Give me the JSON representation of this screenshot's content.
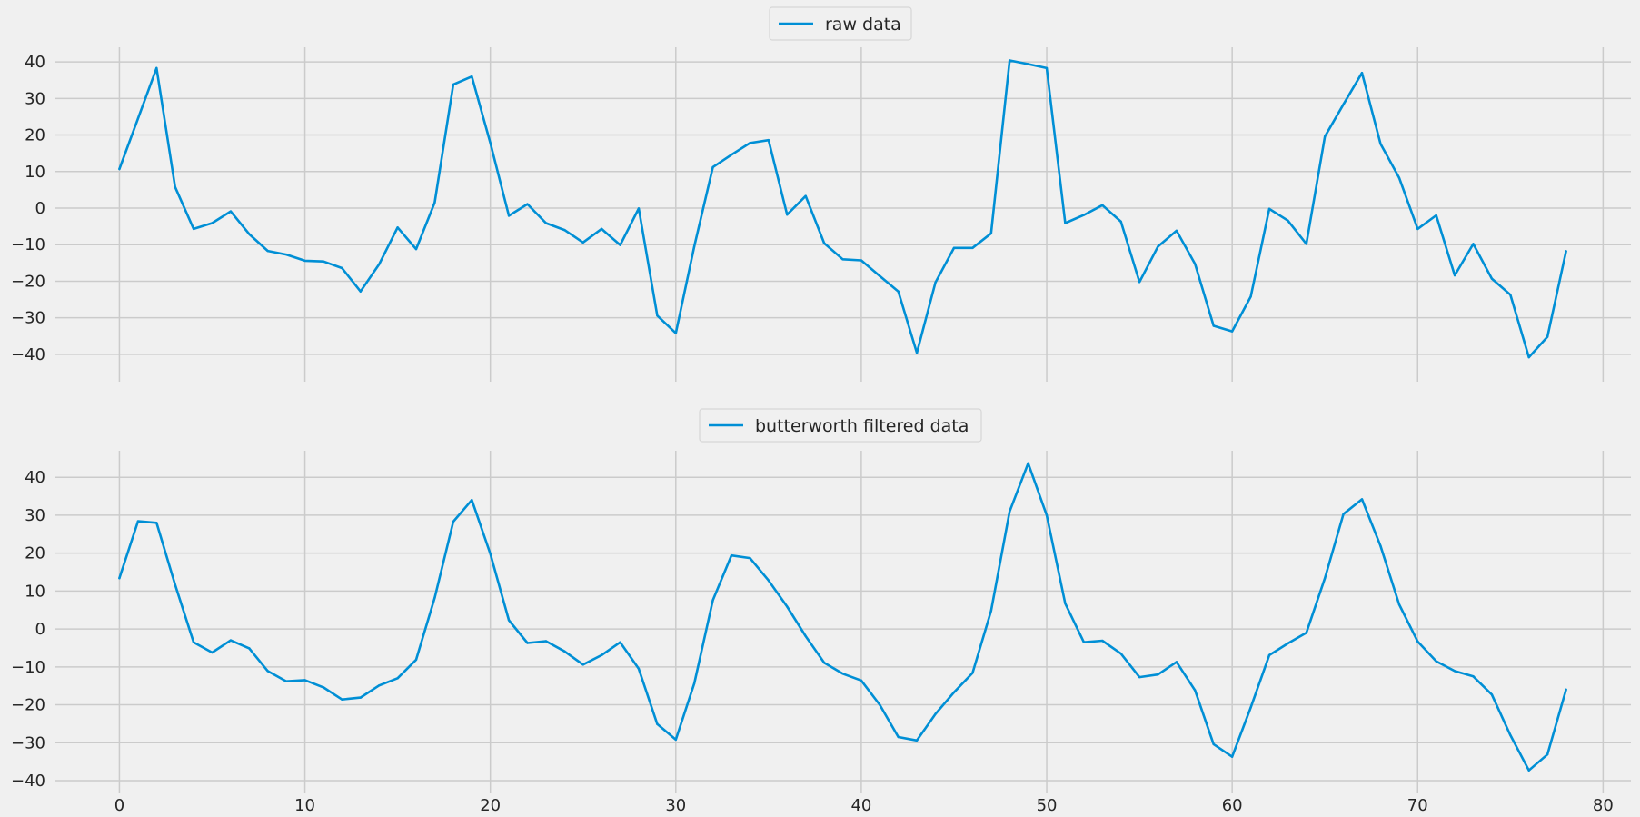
{
  "chart_data": [
    {
      "type": "line",
      "legend_loc": "upper center",
      "grid": true,
      "xlim": [
        -3.5,
        81.5
      ],
      "ylim": [
        -44,
        44
      ],
      "xticks": [
        0,
        10,
        20,
        30,
        40,
        50,
        60,
        70,
        80
      ],
      "yticks": [
        -40,
        -30,
        -20,
        -10,
        0,
        10,
        20,
        30,
        40
      ],
      "show_xticklabels": false,
      "x": [
        0,
        1,
        2,
        3,
        4,
        5,
        6,
        7,
        8,
        9,
        10,
        11,
        12,
        13,
        14,
        15,
        16,
        17,
        18,
        19,
        20,
        21,
        22,
        23,
        24,
        25,
        26,
        27,
        28,
        29,
        30,
        31,
        32,
        33,
        34,
        35,
        36,
        37,
        38,
        39,
        40,
        41,
        42,
        43,
        44,
        45,
        46,
        47,
        48,
        49,
        50,
        51,
        52,
        53,
        54,
        55,
        56,
        57,
        58,
        59,
        60,
        61,
        62,
        63,
        64,
        65,
        66,
        67,
        68,
        69,
        70,
        71,
        72,
        73,
        74,
        75,
        76,
        77,
        78
      ],
      "series": [
        {
          "name": "raw data",
          "color": "#008fd5",
          "values": [
            10.7,
            24.5,
            38.3,
            5.8,
            -5.7,
            -4.1,
            -0.9,
            -7.1,
            -11.7,
            -12.7,
            -14.4,
            -14.6,
            -16.4,
            -22.8,
            -15.4,
            -5.3,
            -11.2,
            1.5,
            33.8,
            36.0,
            17.8,
            -2.1,
            1.1,
            -4.1,
            -6.0,
            -9.4,
            -5.7,
            -10.1,
            -0.1,
            -29.4,
            -34.2,
            -10.4,
            11.2,
            14.6,
            17.8,
            18.6,
            -1.8,
            3.3,
            -9.6,
            -14.0,
            -14.3,
            -18.6,
            -22.8,
            -39.6,
            -20.3,
            -10.9,
            -10.9,
            -6.9,
            40.4,
            39.4,
            38.3,
            -4.1,
            -1.9,
            0.8,
            -3.7,
            -20.2,
            -10.5,
            -6.2,
            -15.3,
            -32.2,
            -33.7,
            -24.2,
            -0.2,
            -3.4,
            -9.8,
            19.6,
            28.4,
            37.0,
            17.6,
            8.3,
            -5.7,
            -2.0,
            -18.4,
            -9.8,
            -19.3,
            -23.7,
            -40.8,
            -35.2,
            -11.8
          ]
        }
      ]
    },
    {
      "type": "line",
      "legend_loc": "upper center",
      "grid": true,
      "xlim": [
        -3.5,
        81.5
      ],
      "ylim": [
        -40,
        47
      ],
      "xticks": [
        0,
        10,
        20,
        30,
        40,
        50,
        60,
        70,
        80
      ],
      "yticks": [
        -40,
        -30,
        -20,
        -10,
        0,
        10,
        20,
        30,
        40
      ],
      "show_xticklabels": true,
      "x": [
        0,
        1,
        2,
        3,
        4,
        5,
        6,
        7,
        8,
        9,
        10,
        11,
        12,
        13,
        14,
        15,
        16,
        17,
        18,
        19,
        20,
        21,
        22,
        23,
        24,
        25,
        26,
        27,
        28,
        29,
        30,
        31,
        32,
        33,
        34,
        35,
        36,
        37,
        38,
        39,
        40,
        41,
        42,
        43,
        44,
        45,
        46,
        47,
        48,
        49,
        50,
        51,
        52,
        53,
        54,
        55,
        56,
        57,
        58,
        59,
        60,
        61,
        62,
        63,
        64,
        65,
        66,
        67,
        68,
        69,
        70,
        71,
        72,
        73,
        74,
        75,
        76,
        77,
        78
      ],
      "series": [
        {
          "name": "butterworth filtered data",
          "color": "#008fd5",
          "values": [
            13.4,
            28.4,
            28.0,
            11.7,
            -3.5,
            -6.2,
            -3.0,
            -5.1,
            -11.1,
            -13.8,
            -13.5,
            -15.4,
            -18.6,
            -18.1,
            -14.9,
            -13.0,
            -8.1,
            8.2,
            28.3,
            34.0,
            19.8,
            2.3,
            -3.7,
            -3.2,
            -5.9,
            -9.4,
            -6.9,
            -3.5,
            -10.5,
            -25.1,
            -29.2,
            -14.3,
            7.6,
            19.4,
            18.7,
            12.8,
            5.9,
            -1.9,
            -8.9,
            -11.8,
            -13.6,
            -20.0,
            -28.5,
            -29.4,
            -22.4,
            -16.7,
            -11.6,
            4.8,
            31.0,
            43.7,
            30.0,
            6.7,
            -3.5,
            -3.1,
            -6.5,
            -12.7,
            -12.0,
            -8.7,
            -16.2,
            -30.4,
            -33.7,
            -20.7,
            -6.9,
            -3.8,
            -1.0,
            13.4,
            30.3,
            34.2,
            21.9,
            6.5,
            -3.3,
            -8.5,
            -11.1,
            -12.5,
            -17.3,
            -28.0,
            -37.3,
            -33.1,
            -16.0
          ]
        }
      ]
    }
  ]
}
